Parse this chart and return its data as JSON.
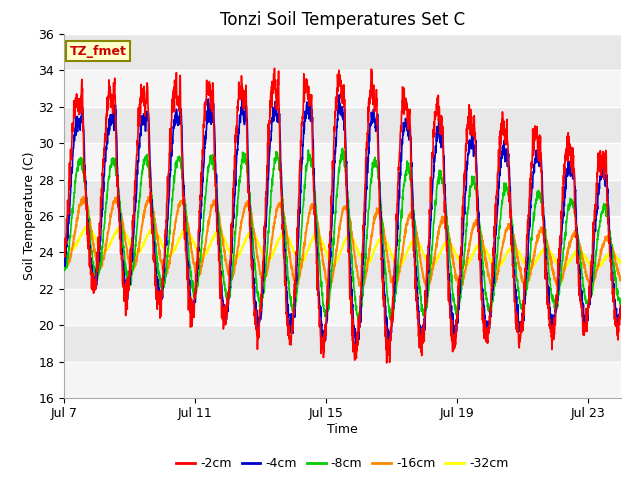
{
  "title": "Tonzi Soil Temperatures Set C",
  "xlabel": "Time",
  "ylabel": "Soil Temperature (C)",
  "ylim": [
    16,
    36
  ],
  "annotation_text": "TZ_fmet",
  "figure_bg": "#ffffff",
  "plot_bg": "#e8e8e8",
  "colors": {
    "-2cm": "#ff0000",
    "-4cm": "#0000cc",
    "-8cm": "#00cc00",
    "-16cm": "#ff8800",
    "-32cm": "#ffff00"
  },
  "legend_labels": [
    "-2cm",
    "-4cm",
    "-8cm",
    "-16cm",
    "-32cm"
  ],
  "x_tick_labels": [
    "Jul 7",
    "Jul 11",
    "Jul 15",
    "Jul 19",
    "Jul 23"
  ],
  "x_tick_positions": [
    0,
    4,
    8,
    12,
    16
  ],
  "y_ticks": [
    16,
    18,
    20,
    22,
    24,
    26,
    28,
    30,
    32,
    34,
    36
  ],
  "num_days": 17,
  "points_per_day": 144
}
